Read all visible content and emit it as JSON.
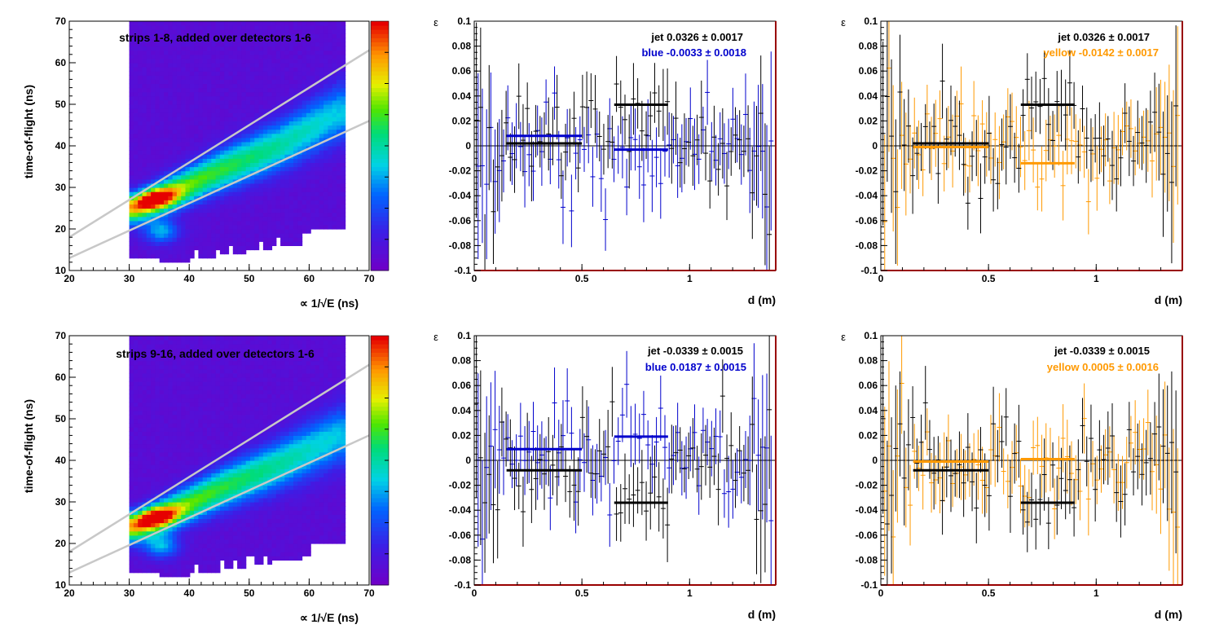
{
  "figure": {
    "rows": [
      {
        "heatmap_title": "strips 1-8, added over detectors 1-6",
        "blue_panel": {
          "jet_label": "jet  0.0326 ± 0.0017",
          "beam_label": "blue -0.0033 ± 0.0018"
        },
        "yellow_panel": {
          "jet_label": "jet  0.0326 ± 0.0017",
          "beam_label": "yellow -0.0142 ± 0.0017"
        }
      },
      {
        "heatmap_title": "strips 9-16, added over detectors 1-6",
        "blue_panel": {
          "jet_label": "jet -0.0339 ± 0.0015",
          "beam_label": "blue  0.0187 ± 0.0015"
        },
        "yellow_panel": {
          "jet_label": "jet -0.0339 ± 0.0015",
          "beam_label": "yellow  0.0005 ± 0.0016"
        }
      }
    ],
    "heatmap_axes": {
      "xlabel": "∝ 1/√E (ns)",
      "ylabel": "time-of-flight (ns)"
    },
    "asym_axes": {
      "xlabel": "d (m)",
      "ylabel": "ε"
    }
  },
  "colors": {
    "jet": "#000000",
    "blue": "#0000cc",
    "yellow": "#ff9900",
    "frame_red": "#990000",
    "cut_lines": "#c8c8c8"
  },
  "chart_data": [
    {
      "type": "heatmap",
      "title": "strips 1-8, added over detectors 1-6",
      "xlabel": "∝ 1/√E (ns)",
      "ylabel": "time-of-flight (ns)",
      "xlim": [
        20,
        70
      ],
      "ylim": [
        10,
        70
      ],
      "xticks": [
        "20",
        "30",
        "40",
        "50",
        "60",
        "70"
      ],
      "yticks": [
        "10",
        "20",
        "30",
        "40",
        "50",
        "60",
        "70"
      ],
      "ridge": [
        [
          31,
          25
        ],
        [
          36,
          28
        ],
        [
          45,
          34
        ],
        [
          55,
          40
        ],
        [
          65,
          48
        ]
      ],
      "peak": [
        34,
        27
      ],
      "cut_lines": [
        [
          [
            20,
            18
          ],
          [
            70,
            63
          ]
        ],
        [
          [
            20,
            13
          ],
          [
            70,
            46
          ]
        ]
      ],
      "colorscale": "rainbow"
    },
    {
      "type": "scatter",
      "xlabel": "d (m)",
      "ylabel": "ε",
      "xlim": [
        0,
        1.4
      ],
      "ylim": [
        -0.1,
        0.1
      ],
      "xticks": [
        "0",
        "0.5",
        "1"
      ],
      "yticks": [
        "-0.1",
        "-0.08",
        "-0.06",
        "-0.04",
        "-0.02",
        "0",
        "0.02",
        "0.04",
        "0.06",
        "0.08",
        "0.1"
      ],
      "series": [
        {
          "name": "jet",
          "fit": 0.0326,
          "err": 0.0017,
          "fit_segments": [
            [
              0.15,
              0.5,
              0.002
            ],
            [
              0.65,
              0.9,
              0.033
            ]
          ]
        },
        {
          "name": "blue",
          "fit": -0.0033,
          "err": 0.0018,
          "fit_segments": [
            [
              0.15,
              0.5,
              0.008
            ],
            [
              0.65,
              0.9,
              -0.003
            ]
          ]
        }
      ]
    },
    {
      "type": "scatter",
      "xlabel": "d (m)",
      "ylabel": "ε",
      "xlim": [
        0,
        1.4
      ],
      "ylim": [
        -0.1,
        0.1
      ],
      "xticks": [
        "0",
        "0.5",
        "1"
      ],
      "yticks": [
        "-0.1",
        "-0.08",
        "-0.06",
        "-0.04",
        "-0.02",
        "0",
        "0.02",
        "0.04",
        "0.06",
        "0.08",
        "0.1"
      ],
      "series": [
        {
          "name": "jet",
          "fit": 0.0326,
          "err": 0.0017,
          "fit_segments": [
            [
              0.15,
              0.5,
              0.002
            ],
            [
              0.65,
              0.9,
              0.033
            ]
          ]
        },
        {
          "name": "yellow",
          "fit": -0.0142,
          "err": 0.0017,
          "fit_segments": [
            [
              0.15,
              0.5,
              -0.001
            ],
            [
              0.65,
              0.9,
              -0.014
            ]
          ]
        }
      ]
    },
    {
      "type": "heatmap",
      "title": "strips 9-16, added over detectors 1-6",
      "xlabel": "∝ 1/√E (ns)",
      "ylabel": "time-of-flight (ns)",
      "xlim": [
        20,
        70
      ],
      "ylim": [
        10,
        70
      ],
      "xticks": [
        "20",
        "30",
        "40",
        "50",
        "60",
        "70"
      ],
      "yticks": [
        "10",
        "20",
        "30",
        "40",
        "50",
        "60",
        "70"
      ],
      "ridge": [
        [
          31,
          24
        ],
        [
          36,
          27
        ],
        [
          45,
          33
        ],
        [
          55,
          39
        ],
        [
          65,
          46
        ]
      ],
      "peak": [
        34,
        26
      ],
      "cut_lines": [
        [
          [
            20,
            18
          ],
          [
            70,
            63
          ]
        ],
        [
          [
            20,
            13
          ],
          [
            70,
            46
          ]
        ]
      ],
      "colorscale": "rainbow"
    },
    {
      "type": "scatter",
      "xlabel": "d (m)",
      "ylabel": "ε",
      "xlim": [
        0,
        1.4
      ],
      "ylim": [
        -0.1,
        0.1
      ],
      "xticks": [
        "0",
        "0.5",
        "1"
      ],
      "yticks": [
        "-0.1",
        "-0.08",
        "-0.06",
        "-0.04",
        "-0.02",
        "0",
        "0.02",
        "0.04",
        "0.06",
        "0.08",
        "0.1"
      ],
      "series": [
        {
          "name": "jet",
          "fit": -0.0339,
          "err": 0.0015,
          "fit_segments": [
            [
              0.15,
              0.5,
              -0.008
            ],
            [
              0.65,
              0.9,
              -0.034
            ]
          ]
        },
        {
          "name": "blue",
          "fit": 0.0187,
          "err": 0.0015,
          "fit_segments": [
            [
              0.15,
              0.5,
              0.009
            ],
            [
              0.65,
              0.9,
              0.019
            ]
          ]
        }
      ]
    },
    {
      "type": "scatter",
      "xlabel": "d (m)",
      "ylabel": "ε",
      "xlim": [
        0,
        1.4
      ],
      "ylim": [
        -0.1,
        0.1
      ],
      "xticks": [
        "0",
        "0.5",
        "1"
      ],
      "yticks": [
        "-0.1",
        "-0.08",
        "-0.06",
        "-0.04",
        "-0.02",
        "0",
        "0.02",
        "0.04",
        "0.06",
        "0.08",
        "0.1"
      ],
      "series": [
        {
          "name": "jet",
          "fit": -0.0339,
          "err": 0.0015,
          "fit_segments": [
            [
              0.15,
              0.5,
              -0.008
            ],
            [
              0.65,
              0.9,
              -0.034
            ]
          ]
        },
        {
          "name": "yellow",
          "fit": 0.0005,
          "err": 0.0016,
          "fit_segments": [
            [
              0.15,
              0.5,
              -0.001
            ],
            [
              0.65,
              0.9,
              0.001
            ]
          ]
        }
      ]
    }
  ]
}
